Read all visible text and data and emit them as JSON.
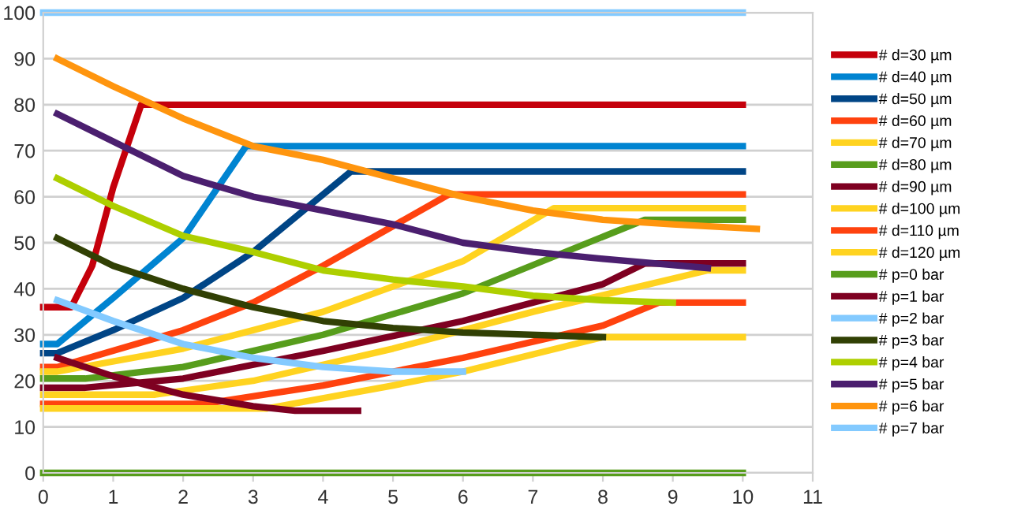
{
  "chart_data": {
    "type": "line",
    "xlim": [
      0,
      11
    ],
    "xticks": [
      0,
      1,
      2,
      3,
      4,
      5,
      6,
      7,
      8,
      9,
      10,
      11
    ],
    "ylim": [
      0,
      100
    ],
    "yticks": [
      0,
      10,
      20,
      30,
      40,
      50,
      60,
      70,
      80,
      90,
      100
    ],
    "grid": "y",
    "legend": "right",
    "marker": "none",
    "line_style": "solid",
    "series": [
      {
        "name": "# d=30 µm",
        "color": "#c5000b",
        "x": [
          0,
          0.4,
          0.7,
          1.0,
          1.4,
          10
        ],
        "values": [
          36,
          36,
          45,
          62,
          80,
          80
        ]
      },
      {
        "name": "# d=40 µm",
        "color": "#0084d1",
        "x": [
          0,
          0.2,
          1,
          2,
          2.9,
          10
        ],
        "values": [
          28,
          28,
          38,
          51,
          71,
          71
        ]
      },
      {
        "name": "# d=50 µm",
        "color": "#004586",
        "x": [
          0,
          0.2,
          1,
          2,
          3,
          4.4,
          10
        ],
        "values": [
          26,
          26,
          31,
          38,
          48,
          65.5,
          65.5
        ]
      },
      {
        "name": "# d=60 µm",
        "color": "#ff420e",
        "x": [
          0,
          0.2,
          2,
          3,
          4,
          5.8,
          10
        ],
        "values": [
          23,
          23,
          31,
          37,
          45,
          60.5,
          60.5
        ]
      },
      {
        "name": "# d=70 µm",
        "color": "#ffd320",
        "x": [
          0,
          0.2,
          2,
          4,
          6,
          7.3,
          10
        ],
        "values": [
          22,
          22,
          27,
          35,
          46,
          57.5,
          57.5
        ]
      },
      {
        "name": "# d=80 µm",
        "color": "#579d1c",
        "x": [
          0,
          0.6,
          2,
          4,
          6,
          8.6,
          10
        ],
        "values": [
          20.5,
          20.5,
          23,
          30,
          39,
          55,
          55
        ]
      },
      {
        "name": "# d=90 µm",
        "color": "#7e0021",
        "x": [
          0,
          0.6,
          2,
          4,
          6,
          8,
          8.6,
          10
        ],
        "values": [
          18.5,
          18.5,
          20.5,
          26.5,
          33,
          41,
          45.5,
          45.5
        ]
      },
      {
        "name": "# d=100 µm",
        "color": "#ffd320",
        "x": [
          0,
          1.6,
          3,
          5,
          7,
          9.5,
          10
        ],
        "values": [
          17,
          17,
          20,
          27,
          35,
          44,
          44
        ]
      },
      {
        "name": "# d=110 µm",
        "color": "#ff420e",
        "x": [
          0,
          2.3,
          4,
          6,
          8,
          8.8,
          10
        ],
        "values": [
          15,
          15,
          19,
          25,
          32,
          37,
          37
        ]
      },
      {
        "name": "# d=120 µm",
        "color": "#ffd320",
        "x": [
          0,
          3.2,
          5,
          6,
          8,
          10
        ],
        "values": [
          14,
          14,
          19,
          22,
          29.5,
          29.5
        ]
      },
      {
        "name": "# p=0 bar",
        "color": "#579d1c",
        "x": [
          0,
          10
        ],
        "values": [
          0,
          0
        ]
      },
      {
        "name": "# p=1 bar",
        "color": "#7e0021",
        "x": [
          0.2,
          1,
          2,
          3,
          3.6,
          4.5
        ],
        "values": [
          25,
          21,
          17,
          14.5,
          13.5,
          13.5
        ]
      },
      {
        "name": "# p=2 bar",
        "color": "#83caff",
        "x": [
          0.2,
          1,
          2,
          3,
          4,
          5,
          6
        ],
        "values": [
          37.5,
          33,
          28,
          25,
          23,
          22,
          22
        ]
      },
      {
        "name": "# p=3 bar",
        "color": "#314004",
        "x": [
          0.2,
          1,
          2,
          3,
          4,
          5,
          6,
          8
        ],
        "values": [
          51,
          45,
          40,
          36,
          33,
          31.5,
          30.5,
          29.5
        ]
      },
      {
        "name": "# p=4 bar",
        "color": "#aecf00",
        "x": [
          0.2,
          1,
          2,
          3,
          4,
          5,
          6,
          7,
          8,
          9
        ],
        "values": [
          64,
          58,
          51.5,
          48,
          44,
          42,
          40.5,
          38.5,
          37.5,
          37
        ]
      },
      {
        "name": "# p=5 bar",
        "color": "#4b1f6f",
        "x": [
          0.2,
          1,
          2,
          3,
          4,
          5,
          6,
          7,
          8,
          9.5
        ],
        "values": [
          78,
          72,
          64.5,
          60,
          57,
          54,
          50,
          48,
          46.5,
          44.5
        ]
      },
      {
        "name": "# p=6 bar",
        "color": "#ff950e",
        "x": [
          0.2,
          1,
          2,
          3,
          4,
          5,
          6,
          7,
          8,
          9,
          10.2
        ],
        "values": [
          90,
          84,
          77,
          71,
          68,
          64,
          60,
          57,
          55,
          54,
          53
        ]
      },
      {
        "name": "# p=7 bar",
        "color": "#83caff",
        "x": [
          0,
          10
        ],
        "values": [
          100,
          100
        ]
      }
    ]
  }
}
